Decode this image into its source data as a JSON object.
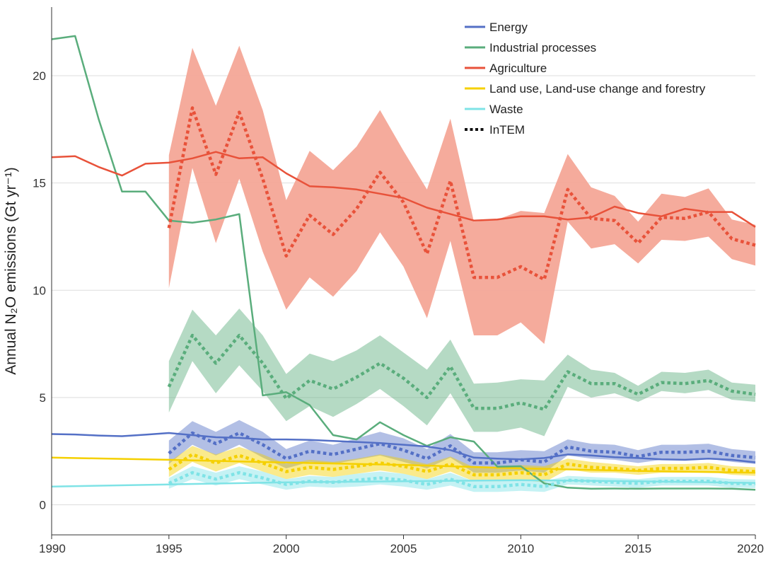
{
  "chart_data": {
    "type": "line",
    "ylabel": "Annual N₂O emissions (Gt yr⁻¹)",
    "xlim": [
      1990,
      2020
    ],
    "ylim": [
      -1.4,
      23.2
    ],
    "grid": "horizontal",
    "legend_position": "top-right",
    "x_ticks": [
      "1990",
      "1995",
      "2000",
      "2005",
      "2010",
      "2015",
      "2020"
    ],
    "y_ticks": [
      "0",
      "5",
      "10",
      "15",
      "20"
    ],
    "series": [
      {
        "name": "Energy",
        "color": "#5470c6",
        "inventory": {
          "x": [
            1990,
            1991,
            1992,
            1993,
            1994,
            1995,
            1996,
            1997,
            1998,
            1999,
            2000,
            2001,
            2002,
            2003,
            2004,
            2005,
            2006,
            2007,
            2008,
            2009,
            2010,
            2011,
            2012,
            2013,
            2014,
            2015,
            2016,
            2017,
            2018,
            2019,
            2020
          ],
          "y": [
            3.3,
            3.28,
            3.23,
            3.2,
            3.27,
            3.35,
            3.25,
            3.15,
            3.12,
            3.05,
            3.05,
            3.03,
            2.98,
            2.93,
            2.88,
            2.8,
            2.72,
            2.55,
            2.2,
            2.15,
            2.12,
            2.18,
            2.35,
            2.3,
            2.22,
            2.18,
            2.12,
            2.1,
            2.15,
            2.1,
            1.98
          ]
        },
        "intem": {
          "x": [
            1995,
            1996,
            1997,
            1998,
            1999,
            2000,
            2001,
            2002,
            2003,
            2004,
            2005,
            2006,
            2007,
            2008,
            2009,
            2010,
            2011,
            2012,
            2013,
            2014,
            2015,
            2016,
            2017,
            2018,
            2019,
            2020
          ],
          "y": [
            2.4,
            3.35,
            2.85,
            3.35,
            2.8,
            2.15,
            2.5,
            2.35,
            2.6,
            2.85,
            2.55,
            2.15,
            2.75,
            1.95,
            1.95,
            2.1,
            2.0,
            2.7,
            2.5,
            2.45,
            2.25,
            2.45,
            2.45,
            2.5,
            2.3,
            2.2
          ],
          "lower": [
            1.9,
            2.8,
            2.3,
            2.8,
            2.2,
            1.7,
            2.0,
            1.9,
            2.1,
            2.3,
            2.0,
            1.7,
            2.2,
            1.5,
            1.5,
            1.6,
            1.5,
            2.3,
            2.15,
            2.1,
            1.95,
            2.1,
            2.1,
            2.15,
            2.0,
            1.9
          ],
          "upper": [
            3.0,
            3.9,
            3.4,
            3.95,
            3.4,
            2.6,
            3.0,
            2.8,
            3.1,
            3.4,
            3.1,
            2.6,
            3.3,
            2.45,
            2.45,
            2.55,
            2.5,
            3.05,
            2.85,
            2.8,
            2.55,
            2.8,
            2.8,
            2.85,
            2.6,
            2.5
          ]
        }
      },
      {
        "name": "Industrial processes",
        "color": "#5aad7c",
        "inventory": {
          "x": [
            1990,
            1991,
            1992,
            1993,
            1994,
            1995,
            1996,
            1997,
            1998,
            1999,
            2000,
            2001,
            2002,
            2003,
            2004,
            2005,
            2006,
            2007,
            2008,
            2009,
            2010,
            2011,
            2012,
            2013,
            2014,
            2015,
            2016,
            2017,
            2018,
            2019,
            2020
          ],
          "y": [
            21.7,
            21.85,
            18.0,
            14.6,
            14.6,
            13.25,
            13.15,
            13.3,
            13.55,
            5.1,
            5.25,
            4.65,
            3.25,
            3.05,
            3.85,
            3.25,
            2.75,
            3.15,
            2.95,
            1.78,
            1.8,
            1.0,
            0.8,
            0.75,
            0.76,
            0.75,
            0.76,
            0.76,
            0.76,
            0.75,
            0.7
          ]
        },
        "intem": {
          "x": [
            1995,
            1996,
            1997,
            1998,
            1999,
            2000,
            2001,
            2002,
            2003,
            2004,
            2005,
            2006,
            2007,
            2008,
            2009,
            2010,
            2011,
            2012,
            2013,
            2014,
            2015,
            2016,
            2017,
            2018,
            2019,
            2020
          ],
          "y": [
            5.5,
            7.9,
            6.6,
            7.9,
            6.6,
            4.95,
            5.8,
            5.4,
            5.95,
            6.6,
            5.9,
            5.0,
            6.45,
            4.5,
            4.5,
            4.75,
            4.45,
            6.2,
            5.65,
            5.65,
            5.15,
            5.7,
            5.65,
            5.8,
            5.3,
            5.15
          ],
          "lower": [
            4.3,
            6.7,
            5.2,
            6.5,
            5.3,
            3.9,
            4.6,
            4.1,
            4.7,
            5.4,
            4.6,
            3.7,
            5.2,
            3.4,
            3.4,
            3.6,
            3.2,
            5.5,
            5.0,
            5.2,
            4.8,
            5.3,
            5.2,
            5.35,
            4.9,
            4.8
          ],
          "upper": [
            6.7,
            9.1,
            7.9,
            9.15,
            7.9,
            6.1,
            7.05,
            6.7,
            7.2,
            7.9,
            7.1,
            6.3,
            7.7,
            5.65,
            5.7,
            5.85,
            5.8,
            7.0,
            6.3,
            6.15,
            5.55,
            6.2,
            6.15,
            6.3,
            5.7,
            5.6
          ]
        }
      },
      {
        "name": "Agriculture",
        "color": "#e8523a",
        "band_color": "#f4a797",
        "inventory": {
          "x": [
            1990,
            1991,
            1992,
            1993,
            1994,
            1995,
            1996,
            1997,
            1998,
            1999,
            2000,
            2001,
            2002,
            2003,
            2004,
            2005,
            2006,
            2007,
            2008,
            2009,
            2010,
            2011,
            2012,
            2013,
            2014,
            2015,
            2016,
            2017,
            2018,
            2019,
            2020
          ],
          "y": [
            16.2,
            16.25,
            15.75,
            15.35,
            15.9,
            15.95,
            16.15,
            16.45,
            16.15,
            16.2,
            15.45,
            14.85,
            14.8,
            14.7,
            14.5,
            14.3,
            13.85,
            13.55,
            13.25,
            13.3,
            13.45,
            13.45,
            13.3,
            13.4,
            13.9,
            13.6,
            13.45,
            13.8,
            13.65,
            13.65,
            12.95
          ]
        },
        "intem": {
          "x": [
            1995,
            1996,
            1997,
            1998,
            1999,
            2000,
            2001,
            2002,
            2003,
            2004,
            2005,
            2006,
            2007,
            2008,
            2009,
            2010,
            2011,
            2012,
            2013,
            2014,
            2015,
            2016,
            2017,
            2018,
            2019,
            2020
          ],
          "y": [
            12.9,
            18.5,
            15.4,
            18.3,
            15.2,
            11.6,
            13.5,
            12.6,
            13.8,
            15.5,
            14.1,
            11.7,
            15.1,
            10.6,
            10.6,
            11.1,
            10.5,
            14.7,
            13.35,
            13.25,
            12.2,
            13.4,
            13.35,
            13.65,
            12.4,
            12.1
          ],
          "lower": [
            10.1,
            15.7,
            12.2,
            15.2,
            11.8,
            9.1,
            10.6,
            9.7,
            10.9,
            12.7,
            11.1,
            8.7,
            12.3,
            7.9,
            7.9,
            8.5,
            7.5,
            13.2,
            11.95,
            12.15,
            11.25,
            12.35,
            12.3,
            12.5,
            11.45,
            11.15
          ],
          "upper": [
            16.3,
            21.3,
            18.6,
            21.4,
            18.4,
            14.2,
            16.5,
            15.6,
            16.7,
            18.4,
            16.5,
            14.7,
            18.0,
            13.2,
            13.3,
            13.7,
            13.6,
            16.35,
            14.8,
            14.4,
            13.2,
            14.5,
            14.35,
            14.75,
            13.3,
            13.05
          ]
        }
      },
      {
        "name": "Land use, Land-use change and forestry",
        "color": "#f5d000",
        "inventory": {
          "x": [
            1990,
            1995,
            2000,
            2005,
            2010,
            2015,
            2020
          ],
          "y": [
            2.2,
            2.1,
            1.97,
            1.86,
            1.7,
            1.58,
            1.5
          ]
        },
        "intem": {
          "x": [
            1995,
            1996,
            1997,
            1998,
            1999,
            2000,
            2001,
            2002,
            2003,
            2004,
            2005,
            2006,
            2007,
            2008,
            2009,
            2010,
            2011,
            2012,
            2013,
            2014,
            2015,
            2016,
            2017,
            2018,
            2019,
            2020
          ],
          "y": [
            1.65,
            2.35,
            1.95,
            2.3,
            1.95,
            1.55,
            1.75,
            1.65,
            1.8,
            1.95,
            1.8,
            1.55,
            1.9,
            1.4,
            1.4,
            1.5,
            1.4,
            1.9,
            1.75,
            1.7,
            1.6,
            1.7,
            1.7,
            1.75,
            1.6,
            1.55
          ],
          "lower": [
            1.3,
            2.0,
            1.55,
            1.95,
            1.55,
            1.2,
            1.4,
            1.3,
            1.45,
            1.6,
            1.45,
            1.2,
            1.55,
            1.1,
            1.1,
            1.15,
            1.05,
            1.65,
            1.5,
            1.5,
            1.4,
            1.5,
            1.5,
            1.55,
            1.4,
            1.35
          ],
          "upper": [
            2.0,
            2.75,
            2.35,
            2.7,
            2.35,
            1.9,
            2.1,
            2.0,
            2.15,
            2.35,
            2.15,
            1.9,
            2.25,
            1.75,
            1.75,
            1.85,
            1.8,
            2.15,
            2.0,
            1.9,
            1.8,
            1.9,
            1.9,
            1.95,
            1.8,
            1.75
          ]
        }
      },
      {
        "name": "Waste",
        "color": "#7fe3e6",
        "inventory": {
          "x": [
            1990,
            1995,
            2000,
            2005,
            2010,
            2015,
            2020
          ],
          "y": [
            0.85,
            0.95,
            1.05,
            1.1,
            1.15,
            1.1,
            1.02
          ]
        },
        "intem": {
          "x": [
            1995,
            1996,
            1997,
            1998,
            1999,
            2000,
            2001,
            2002,
            2003,
            2004,
            2005,
            2006,
            2007,
            2008,
            2009,
            2010,
            2011,
            2012,
            2013,
            2014,
            2015,
            2016,
            2017,
            2018,
            2019,
            2020
          ],
          "y": [
            1.0,
            1.5,
            1.2,
            1.5,
            1.25,
            0.95,
            1.1,
            1.05,
            1.15,
            1.25,
            1.15,
            0.95,
            1.2,
            0.85,
            0.85,
            0.95,
            0.85,
            1.15,
            1.1,
            1.05,
            1.0,
            1.1,
            1.1,
            1.1,
            1.0,
            0.98
          ],
          "lower": [
            0.75,
            1.2,
            0.9,
            1.2,
            0.95,
            0.7,
            0.85,
            0.8,
            0.85,
            0.95,
            0.85,
            0.7,
            0.9,
            0.6,
            0.6,
            0.65,
            0.6,
            0.95,
            0.9,
            0.85,
            0.8,
            0.9,
            0.9,
            0.9,
            0.8,
            0.78
          ],
          "upper": [
            1.25,
            1.8,
            1.5,
            1.8,
            1.55,
            1.2,
            1.35,
            1.3,
            1.45,
            1.55,
            1.45,
            1.2,
            1.5,
            1.1,
            1.1,
            1.2,
            1.1,
            1.35,
            1.3,
            1.25,
            1.2,
            1.3,
            1.3,
            1.3,
            1.2,
            1.18
          ]
        }
      }
    ],
    "legend": [
      {
        "label": "Energy",
        "color": "#5470c6",
        "style": "solid"
      },
      {
        "label": "Industrial processes",
        "color": "#5aad7c",
        "style": "solid"
      },
      {
        "label": "Agriculture",
        "color": "#e8523a",
        "style": "solid"
      },
      {
        "label": "Land use, Land-use change and forestry",
        "color": "#f5d000",
        "style": "solid"
      },
      {
        "label": "Waste",
        "color": "#7fe3e6",
        "style": "solid"
      },
      {
        "label": "InTEM",
        "color": "#111111",
        "style": "dotted"
      }
    ]
  }
}
